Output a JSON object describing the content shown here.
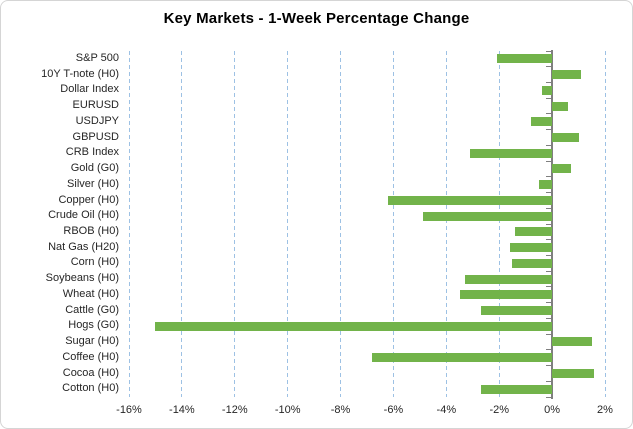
{
  "chart_data": {
    "type": "bar",
    "orientation": "horizontal",
    "title": "Key Markets - 1-Week Percentage Change",
    "categories": [
      "S&P 500",
      "10Y T-note (H0)",
      "Dollar Index",
      "EURUSD",
      "USDJPY",
      "GBPUSD",
      "CRB Index",
      "Gold (G0)",
      "Silver (H0)",
      "Copper (H0)",
      "Crude Oil (H0)",
      "RBOB (H0)",
      "Nat Gas (H20)",
      "Corn (H0)",
      "Soybeans (H0)",
      "Wheat (H0)",
      "Cattle (G0)",
      "Hogs (G0)",
      "Sugar (H0)",
      "Coffee (H0)",
      "Cocoa (H0)",
      "Cotton (H0)"
    ],
    "values": [
      -2.1,
      1.1,
      -0.4,
      0.6,
      -0.8,
      1.0,
      -3.1,
      0.7,
      -0.5,
      -6.2,
      -4.9,
      -1.4,
      -1.6,
      -1.5,
      -3.3,
      -3.5,
      -2.7,
      -15.0,
      1.5,
      -6.8,
      1.6,
      -2.7
    ],
    "value_unit": "%",
    "xlabel": "",
    "ylabel": "",
    "xlim": [
      -16,
      2
    ],
    "xtick_step": 2,
    "xtick_labels": [
      "-16%",
      "-14%",
      "-12%",
      "-10%",
      "-8%",
      "-6%",
      "-4%",
      "-2%",
      "0%",
      "2%"
    ],
    "grid": "vertical-dashed",
    "legend": "none",
    "colors": {
      "bar": "#72B34A",
      "gridline": "#9DC1E4",
      "axis": "#7F7F7F",
      "text": "#262626",
      "title": "#000000"
    }
  }
}
